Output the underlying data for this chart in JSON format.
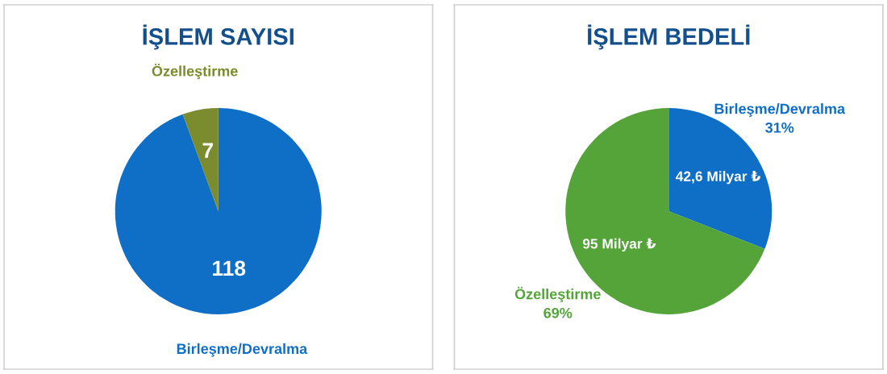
{
  "chart_data": [
    {
      "type": "pie",
      "title": "İŞLEM SAYISI",
      "categories": [
        "Birleşme/Devralma",
        "Özelleştirme"
      ],
      "values": [
        118,
        7
      ],
      "colors": [
        "#0f6ec6",
        "#7a8c2e"
      ],
      "data_labels": true
    },
    {
      "type": "pie",
      "title": "İŞLEM BEDELİ",
      "categories": [
        "Birleşme/Devralma\n31%",
        "Özelleştirme\n69%"
      ],
      "values": [
        42.6,
        95
      ],
      "colors": [
        "#0f6ec6",
        "#54a43a"
      ],
      "value_labels": [
        "42,6 Milyar ₺",
        "95 Milyar ₺"
      ]
    }
  ]
}
